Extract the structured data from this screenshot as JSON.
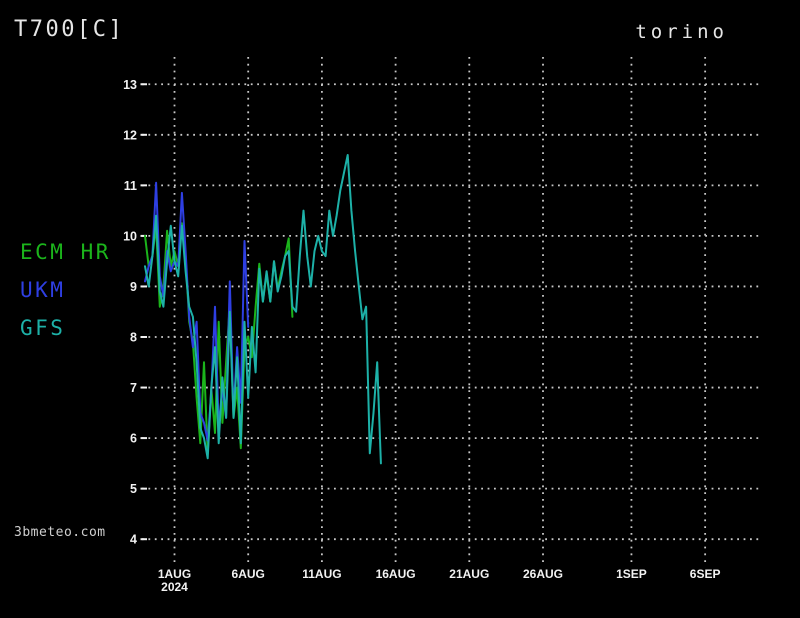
{
  "header": {
    "title": "T700[C]",
    "location": "torino"
  },
  "watermark": "3bmeteo.com",
  "legend": [
    {
      "label": "ECM HR"
    },
    {
      "label": "UKM"
    },
    {
      "label": "GFS"
    }
  ],
  "chart_data": {
    "type": "line",
    "title": "T700[C]",
    "subtitle": "torino",
    "xlabel": "",
    "ylabel": "",
    "ylim": [
      4,
      13
    ],
    "grid": "dotted",
    "legend_position": "left-middle",
    "yticks": [
      4,
      5,
      6,
      7,
      8,
      9,
      10,
      11,
      12,
      13
    ],
    "xticks": [
      {
        "label": "1AUG",
        "sublabel": "2024",
        "day": 0
      },
      {
        "label": "6AUG",
        "day": 5
      },
      {
        "label": "11AUG",
        "day": 10
      },
      {
        "label": "16AUG",
        "day": 15
      },
      {
        "label": "21AUG",
        "day": 20
      },
      {
        "label": "26AUG",
        "day": 25
      },
      {
        "label": "1SEP",
        "day": 31
      },
      {
        "label": "6SEP",
        "day": 36
      }
    ],
    "x_unit": "days from 1 AUG 2024, points every 6h, data starts 30 JUL",
    "series": [
      {
        "name": "ECM HR",
        "color": "#1bb41b",
        "points": [
          [
            -2,
            10.0
          ],
          [
            -1.75,
            9.4
          ],
          [
            -1.5,
            9.6
          ],
          [
            -1.25,
            10.2
          ],
          [
            -1,
            8.6
          ],
          [
            -0.75,
            9.0
          ],
          [
            -0.5,
            10.1
          ],
          [
            -0.25,
            9.4
          ],
          [
            0,
            9.7
          ],
          [
            0.25,
            9.4
          ],
          [
            0.5,
            10.25
          ],
          [
            0.75,
            9.6
          ],
          [
            1,
            8.3
          ],
          [
            1.25,
            7.9
          ],
          [
            1.5,
            6.8
          ],
          [
            1.75,
            5.9
          ],
          [
            2,
            7.5
          ],
          [
            2.25,
            5.7
          ],
          [
            2.5,
            7.0
          ],
          [
            2.75,
            6.1
          ],
          [
            3,
            8.3
          ],
          [
            3.25,
            6.3
          ],
          [
            3.5,
            7.5
          ],
          [
            3.75,
            8.65
          ],
          [
            4,
            6.4
          ],
          [
            4.25,
            7.0
          ],
          [
            4.5,
            5.8
          ],
          [
            4.75,
            7.8
          ],
          [
            5,
            8.0
          ],
          [
            5.25,
            7.6
          ],
          [
            5.5,
            8.6
          ],
          [
            5.75,
            9.45
          ],
          [
            6,
            8.7
          ],
          [
            6.25,
            9.25
          ],
          [
            6.5,
            8.7
          ],
          [
            6.75,
            9.5
          ],
          [
            7,
            8.95
          ],
          [
            7.25,
            9.3
          ],
          [
            7.5,
            9.6
          ],
          [
            7.75,
            9.95
          ],
          [
            8,
            8.4
          ]
        ]
      },
      {
        "name": "UKM",
        "color": "#2e3fe2",
        "points": [
          [
            -2,
            9.1
          ],
          [
            -1.75,
            9.4
          ],
          [
            -1.5,
            9.6
          ],
          [
            -1.25,
            11.05
          ],
          [
            -1,
            9.2
          ],
          [
            -0.75,
            8.8
          ],
          [
            -0.5,
            9.7
          ],
          [
            -0.25,
            9.3
          ],
          [
            0,
            9.5
          ],
          [
            0.25,
            9.4
          ],
          [
            0.5,
            10.85
          ],
          [
            0.75,
            9.7
          ],
          [
            1,
            8.4
          ],
          [
            1.25,
            7.8
          ],
          [
            1.5,
            8.3
          ],
          [
            1.75,
            6.5
          ],
          [
            2,
            6.3
          ],
          [
            2.25,
            5.95
          ],
          [
            2.5,
            6.9
          ],
          [
            2.75,
            8.6
          ],
          [
            3,
            6.2
          ],
          [
            3.25,
            7.0
          ],
          [
            3.5,
            6.4
          ],
          [
            3.75,
            9.1
          ],
          [
            4,
            6.5
          ],
          [
            4.25,
            7.8
          ],
          [
            4.5,
            6.7
          ],
          [
            4.75,
            9.9
          ],
          [
            5,
            8.2
          ]
        ]
      },
      {
        "name": "GFS",
        "color": "#1db1a8",
        "points": [
          [
            -2,
            9.4
          ],
          [
            -1.75,
            9.0
          ],
          [
            -1.5,
            9.6
          ],
          [
            -1.25,
            10.4
          ],
          [
            -1,
            8.9
          ],
          [
            -0.75,
            8.6
          ],
          [
            -0.5,
            9.5
          ],
          [
            -0.25,
            10.2
          ],
          [
            0,
            9.5
          ],
          [
            0.25,
            9.2
          ],
          [
            0.5,
            10.2
          ],
          [
            0.75,
            9.3
          ],
          [
            1,
            8.6
          ],
          [
            1.25,
            8.4
          ],
          [
            1.5,
            7.5
          ],
          [
            1.75,
            6.2
          ],
          [
            2,
            6.0
          ],
          [
            2.25,
            5.6
          ],
          [
            2.5,
            7.0
          ],
          [
            2.75,
            7.8
          ],
          [
            3,
            5.9
          ],
          [
            3.25,
            7.2
          ],
          [
            3.5,
            6.4
          ],
          [
            3.75,
            8.5
          ],
          [
            4,
            6.4
          ],
          [
            4.25,
            7.6
          ],
          [
            4.5,
            5.9
          ],
          [
            4.75,
            8.3
          ],
          [
            5,
            6.8
          ],
          [
            5.25,
            8.2
          ],
          [
            5.5,
            7.3
          ],
          [
            5.75,
            9.35
          ],
          [
            6,
            8.7
          ],
          [
            6.25,
            9.3
          ],
          [
            6.5,
            8.7
          ],
          [
            6.75,
            9.5
          ],
          [
            7,
            8.9
          ],
          [
            7.25,
            9.2
          ],
          [
            7.5,
            9.6
          ],
          [
            7.75,
            9.7
          ],
          [
            8,
            8.6
          ],
          [
            8.25,
            8.5
          ],
          [
            8.5,
            9.6
          ],
          [
            8.75,
            10.5
          ],
          [
            9,
            9.6
          ],
          [
            9.25,
            9.0
          ],
          [
            9.5,
            9.7
          ],
          [
            9.75,
            10.0
          ],
          [
            10,
            9.7
          ],
          [
            10.25,
            9.6
          ],
          [
            10.5,
            10.5
          ],
          [
            10.75,
            10.0
          ],
          [
            11,
            10.4
          ],
          [
            11.25,
            10.9
          ],
          [
            11.5,
            11.25
          ],
          [
            11.75,
            11.6
          ],
          [
            12,
            10.5
          ],
          [
            12.25,
            9.7
          ],
          [
            12.5,
            9.0
          ],
          [
            12.75,
            8.35
          ],
          [
            13,
            8.6
          ],
          [
            13.25,
            5.7
          ],
          [
            13.5,
            6.5
          ],
          [
            13.75,
            7.5
          ],
          [
            14,
            5.5
          ]
        ]
      }
    ]
  }
}
